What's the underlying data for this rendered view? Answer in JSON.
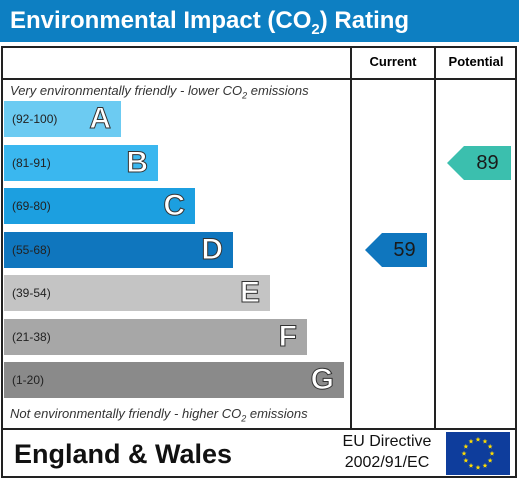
{
  "title": {
    "prefix": "Environmental Impact (CO",
    "sub": "2",
    "suffix": ") Rating"
  },
  "columns": {
    "current": "Current",
    "potential": "Potential"
  },
  "top_note": {
    "prefix": "Very environmentally friendly - lower CO",
    "sub": "2",
    "suffix": " emissions"
  },
  "bottom_note": {
    "prefix": "Not environmentally friendly - higher CO",
    "sub": "2",
    "suffix": " emissions"
  },
  "bands": [
    {
      "range": "(92-100)",
      "letter": "A",
      "color": "#6ccbf2"
    },
    {
      "range": "(81-91)",
      "letter": "B",
      "color": "#3ab7ef"
    },
    {
      "range": "(69-80)",
      "letter": "C",
      "color": "#1c9fe0"
    },
    {
      "range": "(55-68)",
      "letter": "D",
      "color": "#0f76be"
    },
    {
      "range": "(39-54)",
      "letter": "E",
      "color": "#c4c4c4"
    },
    {
      "range": "(21-38)",
      "letter": "F",
      "color": "#a7a7a7"
    },
    {
      "range": "(1-20)",
      "letter": "G",
      "color": "#8a8a8a"
    }
  ],
  "current": {
    "value": "59",
    "band": "D",
    "color": "#0f76be"
  },
  "potential": {
    "value": "89",
    "band": "B",
    "color": "#3bbfae"
  },
  "footer": {
    "region": "England & Wales",
    "directive_line1": "EU Directive",
    "directive_line2": "2002/91/EC"
  },
  "chart_data": {
    "type": "bar",
    "categories": [
      "A",
      "B",
      "C",
      "D",
      "E",
      "F",
      "G"
    ],
    "ranges": [
      "(92-100)",
      "(81-91)",
      "(69-80)",
      "(55-68)",
      "(39-54)",
      "(21-38)",
      "(1-20)"
    ],
    "current": 59,
    "potential": 89
  }
}
